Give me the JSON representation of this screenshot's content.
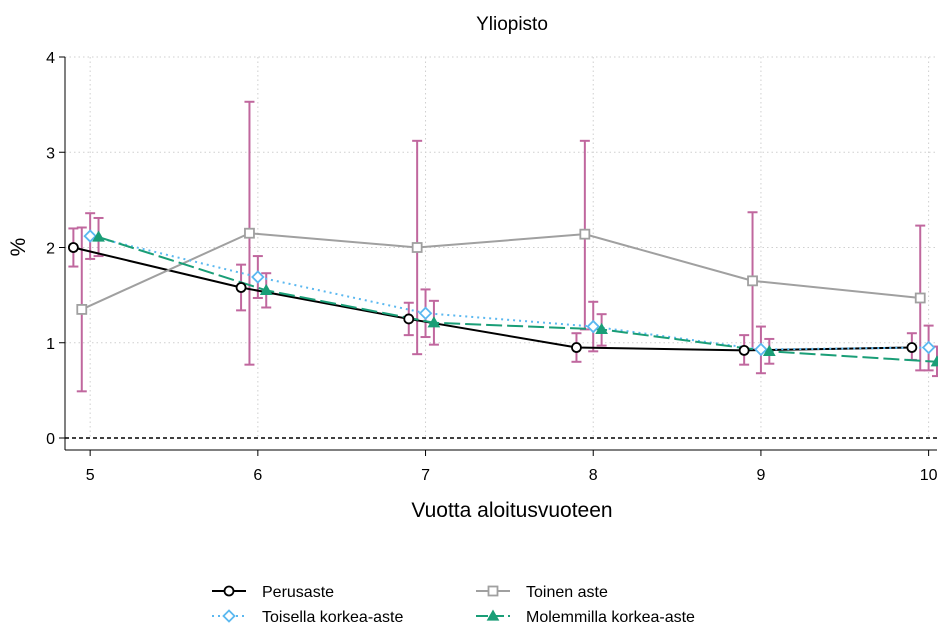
{
  "chart_data": {
    "type": "line",
    "title": "Yliopisto",
    "xlabel": "Vuotta aloitusvuoteen",
    "ylabel": "%",
    "xlim": [
      4.85,
      10.05
    ],
    "ylim": [
      0,
      4
    ],
    "x_ticks": [
      "5",
      "6",
      "7",
      "8",
      "9",
      "10"
    ],
    "y_ticks": [
      "0",
      "1",
      "2",
      "3",
      "4"
    ],
    "grid": true,
    "reference_line": 0,
    "legend_position": "bottom",
    "colors": {
      "errorbar": "#c0679e",
      "grid": "#cfcfcf",
      "axis": "#000000"
    },
    "series": [
      {
        "name": "Perusaste",
        "color": "#000000",
        "dash": "solid",
        "marker": "circle",
        "x": [
          4.9,
          5.9,
          6.9,
          7.9,
          8.9,
          9.9
        ],
        "y": [
          2.0,
          1.58,
          1.25,
          0.95,
          0.92,
          0.95
        ],
        "ci_low": [
          1.8,
          1.34,
          1.08,
          0.8,
          0.77,
          0.82
        ],
        "ci_high": [
          2.2,
          1.82,
          1.42,
          1.1,
          1.08,
          1.1
        ]
      },
      {
        "name": "Toinen aste",
        "color": "#a0a0a0",
        "dash": "solid",
        "marker": "square",
        "x": [
          4.95,
          5.95,
          6.95,
          7.95,
          8.95,
          9.95
        ],
        "y": [
          1.35,
          2.15,
          2.0,
          2.14,
          1.65,
          1.47
        ],
        "ci_low": [
          0.49,
          0.77,
          0.88,
          1.14,
          0.93,
          0.71
        ],
        "ci_high": [
          2.21,
          3.53,
          3.12,
          3.12,
          2.37,
          2.23
        ]
      },
      {
        "name": "Toisella korkea-aste",
        "color": "#5bb8f0",
        "dash": "dotted",
        "marker": "diamond",
        "x": [
          5.0,
          6.0,
          7.0,
          8.0,
          9.0,
          10.0
        ],
        "y": [
          2.12,
          1.69,
          1.31,
          1.17,
          0.93,
          0.95
        ],
        "ci_low": [
          1.88,
          1.47,
          1.06,
          0.91,
          0.68,
          0.71
        ],
        "ci_high": [
          2.36,
          1.91,
          1.56,
          1.43,
          1.17,
          1.18
        ]
      },
      {
        "name": "Molemmilla korkea-aste",
        "color": "#1a9e77",
        "dash": "longdash",
        "marker": "triangle",
        "x": [
          5.05,
          6.05,
          7.05,
          8.05,
          9.05,
          10.05
        ],
        "y": [
          2.11,
          1.55,
          1.21,
          1.14,
          0.91,
          0.8
        ],
        "ci_low": [
          1.91,
          1.37,
          0.98,
          0.97,
          0.78,
          0.65
        ],
        "ci_high": [
          2.31,
          1.73,
          1.44,
          1.3,
          1.04,
          0.96
        ]
      }
    ]
  }
}
